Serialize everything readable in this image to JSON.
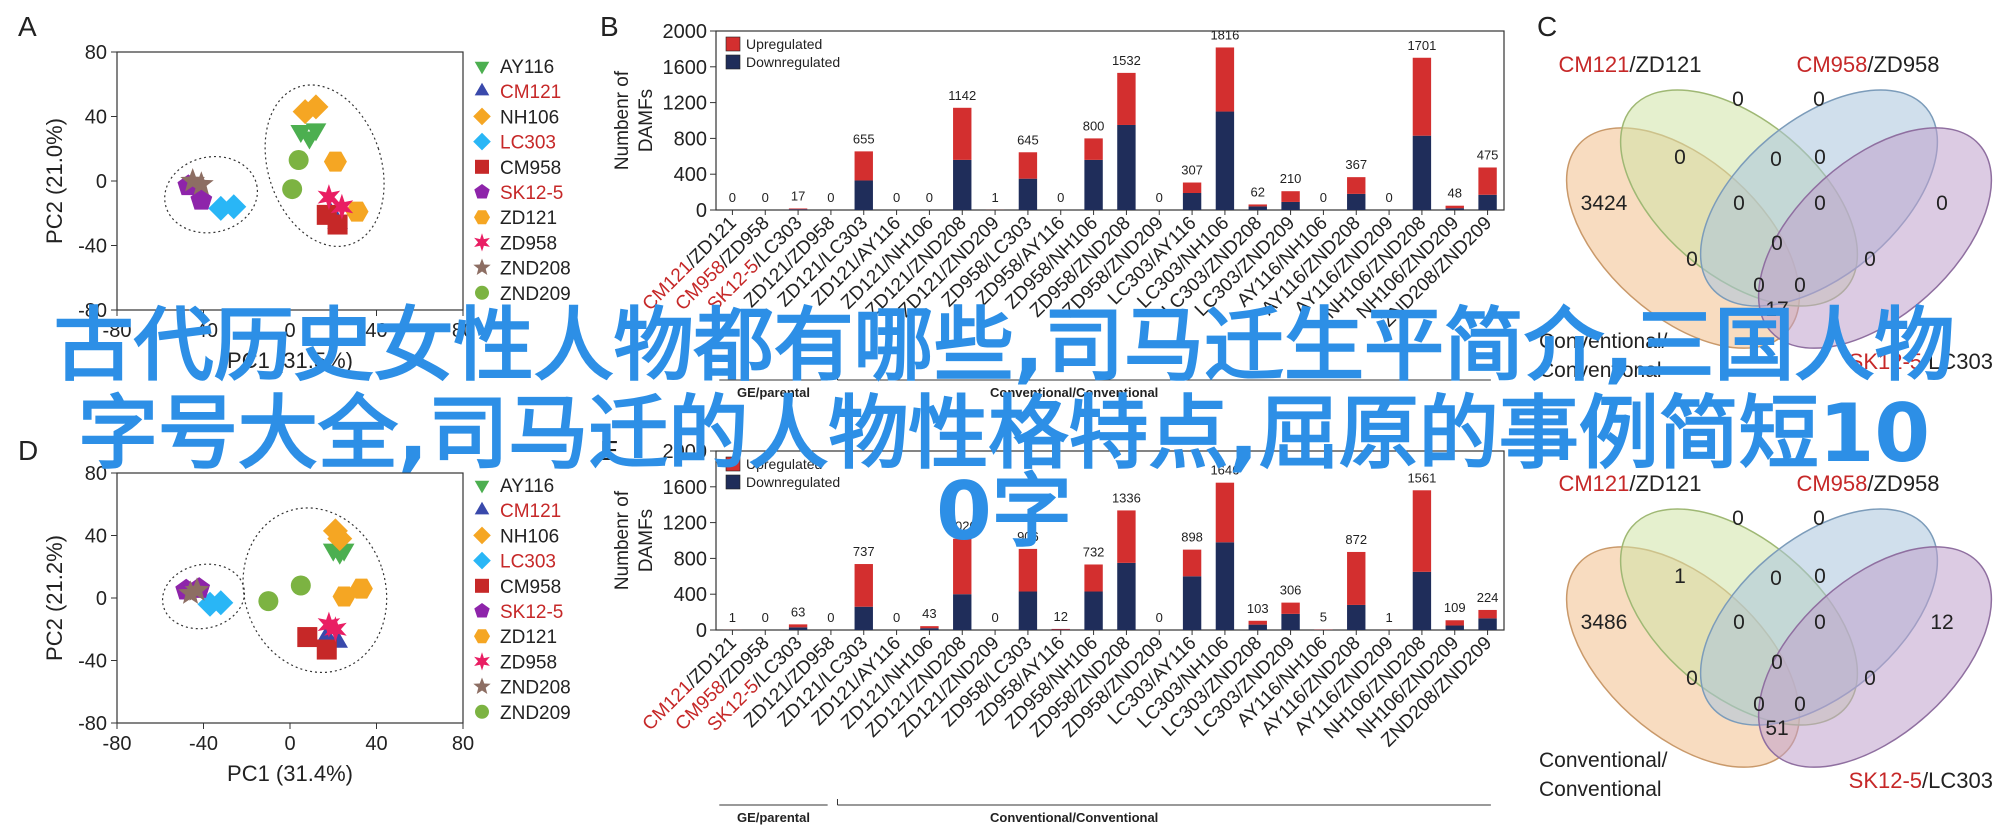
{
  "panels": [
    {
      "id": "A",
      "pca": {
        "xlabel": "PC1 (31.5%)",
        "ylabel": "PC2 (21.0%)",
        "xticks": [
          -80,
          -40,
          0,
          40,
          80
        ],
        "yticks": [
          80,
          40,
          0,
          -40,
          -80
        ],
        "points": [
          {
            "s": "AY116",
            "x": 5,
            "y": 31
          },
          {
            "s": "AY116",
            "x": 9,
            "y": 27
          },
          {
            "s": "AY116",
            "x": 12,
            "y": 32
          },
          {
            "s": "CM121",
            "x": 19,
            "y": -21
          },
          {
            "s": "CM121",
            "x": 22,
            "y": -26
          },
          {
            "s": "NH106",
            "x": 7,
            "y": 43
          },
          {
            "s": "NH106",
            "x": 12,
            "y": 46
          },
          {
            "s": "LC303",
            "x": -32,
            "y": -17
          },
          {
            "s": "LC303",
            "x": -26,
            "y": -16
          },
          {
            "s": "CM958",
            "x": 17,
            "y": -21
          },
          {
            "s": "CM958",
            "x": 22,
            "y": -27
          },
          {
            "s": "SK12-5",
            "x": -47,
            "y": -3
          },
          {
            "s": "SK12-5",
            "x": -41,
            "y": -12
          },
          {
            "s": "ZD121",
            "x": 21,
            "y": 12
          },
          {
            "s": "ZD121",
            "x": 31,
            "y": -19
          },
          {
            "s": "ZD958",
            "x": 18,
            "y": -10
          },
          {
            "s": "ZD958",
            "x": 24,
            "y": -16
          },
          {
            "s": "ZND208",
            "x": -45,
            "y": 0
          },
          {
            "s": "ZND208",
            "x": -41,
            "y": -2
          },
          {
            "s": "ZND209",
            "x": 4,
            "y": 13
          },
          {
            "s": "ZND209",
            "x": 1,
            "y": -5
          }
        ]
      }
    },
    {
      "id": "B",
      "bar": {
        "ylabel": "Numbenr of DAMFs",
        "yticks": [
          0,
          400,
          800,
          1200,
          1600,
          2000
        ],
        "ymax": 2000,
        "legend": [
          "Upregulated",
          "Downregulated"
        ],
        "categories": [
          "CM121/ZD121",
          "CM958/ZD958",
          "SK12-5/LC303",
          "ZD121/ZD958",
          "ZD121/LC303",
          "ZD121/AY116",
          "ZD121/NH106",
          "ZD121/ZND208",
          "ZD121/ZND209",
          "ZD958/LC303",
          "ZD958/AY116",
          "ZD958/NH106",
          "ZD958/ZND208",
          "ZD958/ZND209",
          "LC303/AY116",
          "LC303/NH106",
          "LC303/ZND208",
          "LC303/ZND209",
          "AY116/NH106",
          "AY116/ZND208",
          "AY116/ZND209",
          "NH106/ZND208",
          "NH106/ZND209",
          "ZND208/ZND209"
        ],
        "red_cats": [
          0,
          1,
          2
        ],
        "totals": [
          0,
          0,
          17,
          0,
          655,
          0,
          0,
          1142,
          1,
          645,
          0,
          800,
          1532,
          0,
          307,
          1816,
          62,
          210,
          0,
          367,
          0,
          1701,
          48,
          475
        ],
        "down": [
          0,
          0,
          9,
          0,
          330,
          0,
          0,
          560,
          0,
          350,
          0,
          560,
          950,
          0,
          190,
          1100,
          40,
          90,
          0,
          180,
          0,
          830,
          20,
          170
        ],
        "groups": [
          "GE/parental",
          "Conventional/Conventional"
        ]
      }
    },
    {
      "id": "C",
      "venn": {
        "labels": [
          {
            "parts": [
              {
                "t": "CM121",
                "red": true
              },
              {
                "t": "/ZD121",
                "red": false
              }
            ]
          },
          {
            "parts": [
              {
                "t": "CM958",
                "red": true
              },
              {
                "t": "/ZD958",
                "red": false
              }
            ]
          },
          {
            "parts": [
              {
                "t": "Conventional/",
                "red": false
              },
              {
                "t": "Conventional",
                "red": false
              }
            ]
          },
          {
            "parts": [
              {
                "t": "SK12-5",
                "red": true
              },
              {
                "t": "/LC303",
                "red": false
              }
            ]
          }
        ],
        "values": [
          "3424",
          "0",
          "0",
          "0",
          "0",
          "0",
          "0",
          "0",
          "0",
          "0",
          "0",
          "17",
          "0",
          "0",
          "0"
        ]
      }
    },
    {
      "id": "D",
      "pca": {
        "xlabel": "PC1 (31.4%)",
        "ylabel": "PC2 (21.2%)",
        "xticks": [
          -80,
          -40,
          0,
          40,
          80
        ],
        "yticks": [
          80,
          40,
          0,
          -40,
          -80
        ],
        "points": [
          {
            "s": "AY116",
            "x": 20,
            "y": 31
          },
          {
            "s": "AY116",
            "x": 23,
            "y": 29
          },
          {
            "s": "AY116",
            "x": 25,
            "y": 31
          },
          {
            "s": "CM121",
            "x": 22,
            "y": -28
          },
          {
            "s": "CM121",
            "x": 17,
            "y": -25
          },
          {
            "s": "NH106",
            "x": 21,
            "y": 43
          },
          {
            "s": "NH106",
            "x": 23,
            "y": 38
          },
          {
            "s": "LC303",
            "x": -37,
            "y": -4
          },
          {
            "s": "LC303",
            "x": -32,
            "y": -3
          },
          {
            "s": "CM958",
            "x": 8,
            "y": -25
          },
          {
            "s": "CM958",
            "x": 17,
            "y": -33
          },
          {
            "s": "SK12-5",
            "x": -48,
            "y": 5
          },
          {
            "s": "SK12-5",
            "x": -42,
            "y": 6
          },
          {
            "s": "ZD121",
            "x": 25,
            "y": 1
          },
          {
            "s": "ZD121",
            "x": 33,
            "y": 6
          },
          {
            "s": "ZD958",
            "x": 18,
            "y": -17
          },
          {
            "s": "ZD958",
            "x": 21,
            "y": -20
          },
          {
            "s": "ZND208",
            "x": -46,
            "y": 3
          },
          {
            "s": "ZND208",
            "x": -43,
            "y": 5
          },
          {
            "s": "ZND209",
            "x": 5,
            "y": 8
          },
          {
            "s": "ZND209",
            "x": -10,
            "y": -2
          }
        ]
      }
    },
    {
      "id": "E",
      "bar": {
        "ylabel": "Numbenr of DAMFs",
        "yticks": [
          0,
          400,
          800,
          1200,
          1600,
          2000
        ],
        "ymax": 2000,
        "legend": [
          "Upregulated",
          "Downregulated"
        ],
        "categories": [
          "CM121/ZD121",
          "CM958/ZD958",
          "SK12-5/LC303",
          "ZD121/ZD958",
          "ZD121/LC303",
          "ZD121/AY116",
          "ZD121/NH106",
          "ZD121/ZND208",
          "ZD121/ZND209",
          "ZD958/LC303",
          "ZD958/AY116",
          "ZD958/NH106",
          "ZD958/ZND208",
          "ZD958/ZND209",
          "LC303/AY116",
          "LC303/NH106",
          "LC303/ZND208",
          "LC303/ZND209",
          "AY116/NH106",
          "AY116/ZND208",
          "AY116/ZND209",
          "NH106/ZND208",
          "NH106/ZND209",
          "ZND208/ZND209"
        ],
        "red_cats": [
          0,
          1,
          2
        ],
        "totals": [
          1,
          0,
          63,
          0,
          737,
          0,
          43,
          1020,
          0,
          906,
          12,
          732,
          1336,
          0,
          898,
          1646,
          103,
          306,
          5,
          872,
          1,
          1561,
          109,
          224
        ],
        "down": [
          0,
          0,
          30,
          0,
          260,
          0,
          20,
          400,
          0,
          430,
          5,
          430,
          750,
          0,
          600,
          980,
          60,
          180,
          2,
          280,
          0,
          650,
          50,
          130
        ],
        "groups": [
          "GE/parental",
          "Conventional/Conventional"
        ]
      }
    },
    {
      "id": "F",
      "venn": {
        "labels": [
          {
            "parts": [
              {
                "t": "CM121",
                "red": true
              },
              {
                "t": "/ZD121",
                "red": false
              }
            ]
          },
          {
            "parts": [
              {
                "t": "CM958",
                "red": true
              },
              {
                "t": "/ZD958",
                "red": false
              }
            ]
          },
          {
            "parts": [
              {
                "t": "Conventional/",
                "red": false
              },
              {
                "t": "Conventional",
                "red": false
              }
            ]
          },
          {
            "parts": [
              {
                "t": "SK12-5",
                "red": true
              },
              {
                "t": "/LC303",
                "red": false
              }
            ]
          }
        ],
        "values": [
          "3486",
          "0",
          "0",
          "12",
          "1",
          "0",
          "0",
          "0",
          "0",
          "0",
          "0",
          "51",
          "0",
          "0",
          "0"
        ]
      }
    }
  ],
  "legend_items": [
    "AY116",
    "CM121",
    "NH106",
    "LC303",
    "CM958",
    "SK12-5",
    "ZD121",
    "ZD958",
    "ZND208",
    "ZND209"
  ],
  "legend_red": [
    "CM121",
    "LC303",
    "SK12-5"
  ],
  "markers": {
    "AY116": {
      "shape": "tri-down",
      "color": "#4caf50"
    },
    "CM121": {
      "shape": "tri-up",
      "color": "#3949ab"
    },
    "NH106": {
      "shape": "diamond",
      "color": "#f5a623"
    },
    "LC303": {
      "shape": "diamond",
      "color": "#29b6f6"
    },
    "CM958": {
      "shape": "square",
      "color": "#c62828"
    },
    "SK12-5": {
      "shape": "pentagon",
      "color": "#8e24aa"
    },
    "ZD121": {
      "shape": "hexagon",
      "color": "#f5a623"
    },
    "ZD958": {
      "shape": "star6",
      "color": "#e91e63"
    },
    "ZND208": {
      "shape": "star5",
      "color": "#8d6e63"
    },
    "ZND209": {
      "shape": "circle",
      "color": "#7cb342"
    }
  },
  "colors": {
    "up": "#d32f2f",
    "down": "#1f2d5a",
    "red_text": "#c62828",
    "overlay": "#2d8fe6"
  },
  "overlay": {
    "line1": "古代历史女性人物都有哪些,司马迁生平简介,三国人物",
    "line2": "字号大全,司马迁的人物性格特点,屈原的事例简短10",
    "line3": "0字"
  }
}
